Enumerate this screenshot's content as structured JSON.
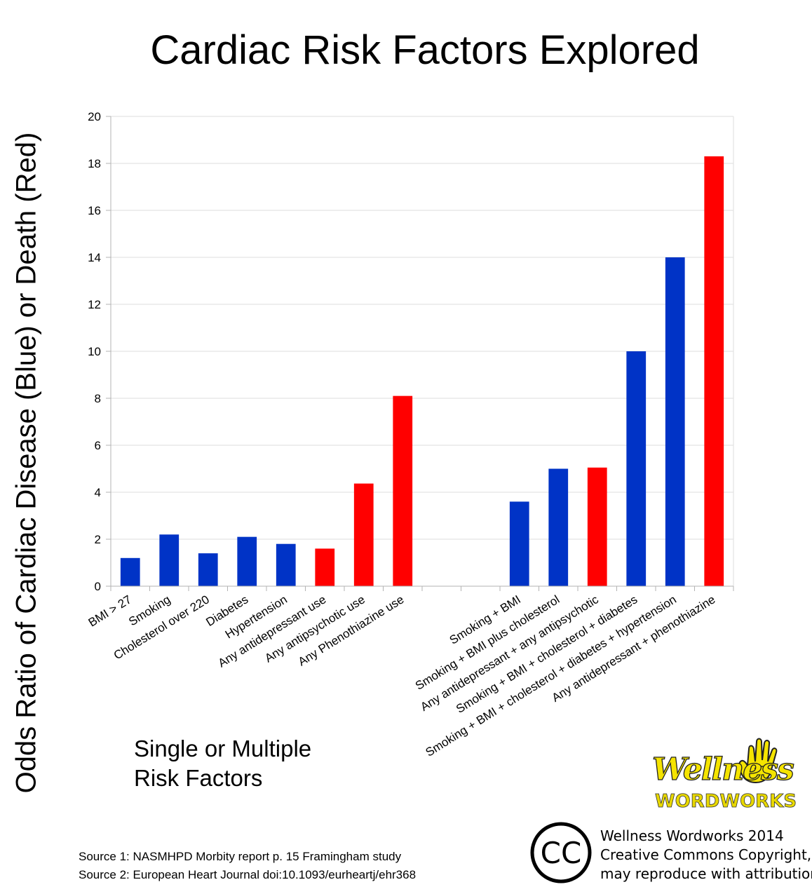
{
  "chart_data": {
    "type": "bar",
    "title": "Cardiac Risk Factors Explored",
    "ylabel": "Odds Ratio of Cardiac Disease (Blue) or Death (Red)",
    "xlabel_lines": [
      "Single or Multiple",
      "Risk Factors"
    ],
    "ylim": [
      0,
      20
    ],
    "yticks": [
      0,
      2,
      4,
      6,
      8,
      10,
      12,
      14,
      16,
      18,
      20
    ],
    "grid": true,
    "categories": [
      "BMI > 27",
      "Smoking",
      "Cholesterol over 220",
      "Diabetes",
      "Hypertension",
      "Any antidepressant use",
      "Any antipsychotic use",
      "Any Phenothiazine use",
      "",
      "",
      "Smoking + BMI",
      "Smoking + BMI plus cholesterol",
      "Any antidepressant + any antipsychotic",
      "Smoking + BMI + cholesterol + diabetes",
      "Smoking + BMI + cholesterol + diabetes + hypertension",
      "Any antidepressant + phenothiazine"
    ],
    "values": [
      1.2,
      2.2,
      1.4,
      2.1,
      1.8,
      1.6,
      4.37,
      8.1,
      null,
      null,
      3.6,
      5.0,
      5.05,
      10.0,
      14.0,
      18.3
    ],
    "bar_colors": [
      "blue",
      "blue",
      "blue",
      "blue",
      "blue",
      "red",
      "red",
      "red",
      null,
      null,
      "blue",
      "blue",
      "red",
      "blue",
      "blue",
      "red"
    ]
  },
  "colors": {
    "blue": "#0033c6",
    "red": "#ff0000",
    "grid": "#dddddd",
    "axis": "#b3b3b3"
  },
  "sources": [
    "Source 1: NASMHPD Morbity report p. 15 Framingham study",
    "Source 2: European Heart Journal doi:10.1093/eurheartj/ehr368"
  ],
  "copyright": [
    "Wellness Wordworks 2014",
    "Creative Commons Copyright,",
    "may reproduce with attribution"
  ],
  "cc_logo_text": "CC",
  "brand_logo": {
    "script": "Wellness",
    "sub": "WORDWORKS",
    "icon": "hand-icon"
  }
}
